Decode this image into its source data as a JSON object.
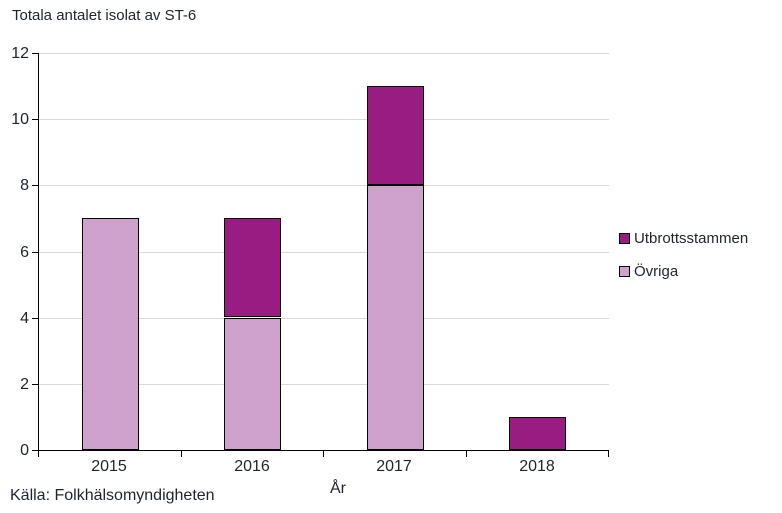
{
  "chart_data": {
    "type": "bar",
    "stacked": true,
    "title": "Totala antalet isolat av ST-6",
    "xlabel": "År",
    "ylabel": "",
    "categories": [
      "2015",
      "2016",
      "2017",
      "2018"
    ],
    "series": [
      {
        "name": "Övriga",
        "color": "#CEA2CC",
        "values": [
          7,
          4,
          8,
          0
        ]
      },
      {
        "name": "Utbrottsstammen",
        "color": "#981C82",
        "values": [
          0,
          3,
          3,
          1
        ]
      }
    ],
    "totals": [
      7,
      7,
      11,
      1
    ],
    "legend": {
      "position": "right",
      "order": [
        "Utbrottsstammen",
        "Övriga"
      ]
    },
    "ylim": [
      0,
      12
    ],
    "yticks": [
      0,
      2,
      4,
      6,
      8,
      10,
      12
    ],
    "grid": "horizontal"
  },
  "source_note": "Källa: Folkhälsomyndigheten",
  "colors": {
    "outbreak_strain": "#981C82",
    "other": "#CEA2CC",
    "gridline": "#D9D9D9",
    "axis": "#000000",
    "text": "#1E2430",
    "background": "#FFFFFF"
  }
}
